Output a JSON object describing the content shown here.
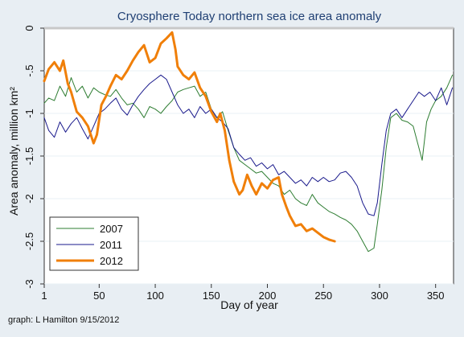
{
  "credit": "graph:  L Hamilton 9/15/2012",
  "chart_data": {
    "type": "line",
    "title": "Cryosphere Today northern sea ice area anomaly",
    "xlabel": "Day of year",
    "ylabel": "Area anomaly, million km²",
    "xlim": [
      1,
      366
    ],
    "ylim": [
      -3,
      0
    ],
    "xticks": [
      1,
      50,
      100,
      150,
      200,
      250,
      300,
      350
    ],
    "yticks": [
      0,
      -0.5,
      -1,
      -1.5,
      -2,
      -2.5,
      -3
    ],
    "ytick_labels": [
      "0",
      "-.5",
      "-1",
      "-1.5",
      "-2",
      "-2.5",
      "-3"
    ],
    "grid": true,
    "reference_line": 0,
    "legend_position": "bottom-left",
    "series": [
      {
        "name": "2007",
        "color": "#2e7d32",
        "width": 1,
        "points": [
          [
            1,
            -0.88
          ],
          [
            5,
            -0.82
          ],
          [
            10,
            -0.85
          ],
          [
            15,
            -0.68
          ],
          [
            20,
            -0.8
          ],
          [
            25,
            -0.58
          ],
          [
            30,
            -0.75
          ],
          [
            35,
            -0.68
          ],
          [
            40,
            -0.82
          ],
          [
            45,
            -0.7
          ],
          [
            50,
            -0.75
          ],
          [
            55,
            -0.78
          ],
          [
            60,
            -0.8
          ],
          [
            65,
            -0.72
          ],
          [
            70,
            -0.82
          ],
          [
            75,
            -0.9
          ],
          [
            80,
            -0.88
          ],
          [
            85,
            -0.95
          ],
          [
            90,
            -1.05
          ],
          [
            95,
            -0.92
          ],
          [
            100,
            -0.95
          ],
          [
            105,
            -1.0
          ],
          [
            110,
            -0.92
          ],
          [
            115,
            -0.85
          ],
          [
            120,
            -0.75
          ],
          [
            125,
            -0.72
          ],
          [
            130,
            -0.7
          ],
          [
            135,
            -0.68
          ],
          [
            140,
            -0.8
          ],
          [
            145,
            -0.75
          ],
          [
            150,
            -0.95
          ],
          [
            155,
            -1.05
          ],
          [
            160,
            -0.98
          ],
          [
            165,
            -1.2
          ],
          [
            170,
            -1.4
          ],
          [
            175,
            -1.55
          ],
          [
            180,
            -1.6
          ],
          [
            185,
            -1.65
          ],
          [
            190,
            -1.7
          ],
          [
            195,
            -1.68
          ],
          [
            200,
            -1.75
          ],
          [
            205,
            -1.82
          ],
          [
            210,
            -1.85
          ],
          [
            215,
            -1.95
          ],
          [
            220,
            -1.9
          ],
          [
            225,
            -2.0
          ],
          [
            230,
            -2.05
          ],
          [
            235,
            -2.08
          ],
          [
            240,
            -1.95
          ],
          [
            245,
            -2.05
          ],
          [
            250,
            -2.1
          ],
          [
            255,
            -2.15
          ],
          [
            260,
            -2.18
          ],
          [
            265,
            -2.22
          ],
          [
            270,
            -2.25
          ],
          [
            275,
            -2.3
          ],
          [
            280,
            -2.38
          ],
          [
            285,
            -2.5
          ],
          [
            290,
            -2.62
          ],
          [
            295,
            -2.58
          ],
          [
            298,
            -2.3
          ],
          [
            302,
            -1.9
          ],
          [
            306,
            -1.4
          ],
          [
            310,
            -1.05
          ],
          [
            315,
            -1.0
          ],
          [
            320,
            -1.08
          ],
          [
            325,
            -1.1
          ],
          [
            330,
            -1.15
          ],
          [
            335,
            -1.4
          ],
          [
            338,
            -1.55
          ],
          [
            342,
            -1.1
          ],
          [
            346,
            -0.95
          ],
          [
            350,
            -0.85
          ],
          [
            355,
            -0.8
          ],
          [
            360,
            -0.7
          ],
          [
            365,
            -0.55
          ]
        ]
      },
      {
        "name": "2011",
        "color": "#1a1a8c",
        "width": 1,
        "points": [
          [
            1,
            -1.05
          ],
          [
            5,
            -1.2
          ],
          [
            10,
            -1.28
          ],
          [
            15,
            -1.1
          ],
          [
            20,
            -1.22
          ],
          [
            25,
            -1.12
          ],
          [
            30,
            -1.05
          ],
          [
            35,
            -1.18
          ],
          [
            40,
            -1.3
          ],
          [
            45,
            -1.15
          ],
          [
            50,
            -1.0
          ],
          [
            55,
            -0.95
          ],
          [
            60,
            -0.88
          ],
          [
            65,
            -0.82
          ],
          [
            70,
            -0.95
          ],
          [
            75,
            -1.02
          ],
          [
            80,
            -0.9
          ],
          [
            85,
            -0.8
          ],
          [
            90,
            -0.72
          ],
          [
            95,
            -0.65
          ],
          [
            100,
            -0.6
          ],
          [
            105,
            -0.55
          ],
          [
            110,
            -0.6
          ],
          [
            115,
            -0.75
          ],
          [
            120,
            -0.9
          ],
          [
            125,
            -1.0
          ],
          [
            130,
            -0.95
          ],
          [
            135,
            -1.05
          ],
          [
            140,
            -0.92
          ],
          [
            145,
            -1.0
          ],
          [
            150,
            -0.95
          ],
          [
            155,
            -1.05
          ],
          [
            160,
            -1.1
          ],
          [
            165,
            -1.18
          ],
          [
            170,
            -1.4
          ],
          [
            175,
            -1.48
          ],
          [
            180,
            -1.55
          ],
          [
            185,
            -1.52
          ],
          [
            190,
            -1.62
          ],
          [
            195,
            -1.58
          ],
          [
            200,
            -1.65
          ],
          [
            205,
            -1.6
          ],
          [
            210,
            -1.72
          ],
          [
            215,
            -1.68
          ],
          [
            220,
            -1.75
          ],
          [
            225,
            -1.82
          ],
          [
            230,
            -1.78
          ],
          [
            235,
            -1.85
          ],
          [
            240,
            -1.75
          ],
          [
            245,
            -1.8
          ],
          [
            250,
            -1.75
          ],
          [
            255,
            -1.8
          ],
          [
            260,
            -1.78
          ],
          [
            265,
            -1.7
          ],
          [
            270,
            -1.68
          ],
          [
            275,
            -1.75
          ],
          [
            280,
            -1.85
          ],
          [
            285,
            -2.05
          ],
          [
            290,
            -2.18
          ],
          [
            295,
            -2.2
          ],
          [
            298,
            -2.05
          ],
          [
            302,
            -1.6
          ],
          [
            306,
            -1.2
          ],
          [
            310,
            -1.0
          ],
          [
            315,
            -0.95
          ],
          [
            320,
            -1.05
          ],
          [
            325,
            -0.95
          ],
          [
            330,
            -0.85
          ],
          [
            335,
            -0.75
          ],
          [
            340,
            -0.8
          ],
          [
            345,
            -0.75
          ],
          [
            350,
            -0.85
          ],
          [
            355,
            -0.7
          ],
          [
            360,
            -0.9
          ],
          [
            365,
            -0.7
          ]
        ]
      },
      {
        "name": "2012",
        "color": "#f07f09",
        "width": 3,
        "points": [
          [
            1,
            -0.62
          ],
          [
            5,
            -0.48
          ],
          [
            10,
            -0.4
          ],
          [
            15,
            -0.5
          ],
          [
            18,
            -0.38
          ],
          [
            22,
            -0.65
          ],
          [
            25,
            -0.75
          ],
          [
            30,
            -0.98
          ],
          [
            35,
            -1.05
          ],
          [
            40,
            -1.15
          ],
          [
            45,
            -1.35
          ],
          [
            48,
            -1.25
          ],
          [
            52,
            -0.9
          ],
          [
            56,
            -0.8
          ],
          [
            60,
            -0.68
          ],
          [
            65,
            -0.55
          ],
          [
            70,
            -0.6
          ],
          [
            75,
            -0.5
          ],
          [
            80,
            -0.38
          ],
          [
            85,
            -0.28
          ],
          [
            90,
            -0.2
          ],
          [
            95,
            -0.4
          ],
          [
            100,
            -0.35
          ],
          [
            105,
            -0.18
          ],
          [
            110,
            -0.12
          ],
          [
            115,
            -0.05
          ],
          [
            118,
            -0.25
          ],
          [
            120,
            -0.45
          ],
          [
            125,
            -0.55
          ],
          [
            130,
            -0.6
          ],
          [
            135,
            -0.52
          ],
          [
            140,
            -0.7
          ],
          [
            145,
            -0.8
          ],
          [
            150,
            -0.98
          ],
          [
            155,
            -1.1
          ],
          [
            158,
            -1.0
          ],
          [
            162,
            -1.2
          ],
          [
            166,
            -1.55
          ],
          [
            170,
            -1.8
          ],
          [
            175,
            -1.95
          ],
          [
            178,
            -1.9
          ],
          [
            182,
            -1.72
          ],
          [
            186,
            -1.85
          ],
          [
            190,
            -1.95
          ],
          [
            195,
            -1.82
          ],
          [
            200,
            -1.88
          ],
          [
            205,
            -1.78
          ],
          [
            210,
            -1.75
          ],
          [
            213,
            -1.95
          ],
          [
            217,
            -2.1
          ],
          [
            220,
            -2.2
          ],
          [
            225,
            -2.32
          ],
          [
            230,
            -2.3
          ],
          [
            235,
            -2.38
          ],
          [
            240,
            -2.35
          ],
          [
            245,
            -2.4
          ],
          [
            250,
            -2.45
          ],
          [
            255,
            -2.48
          ],
          [
            260,
            -2.5
          ]
        ]
      }
    ]
  }
}
